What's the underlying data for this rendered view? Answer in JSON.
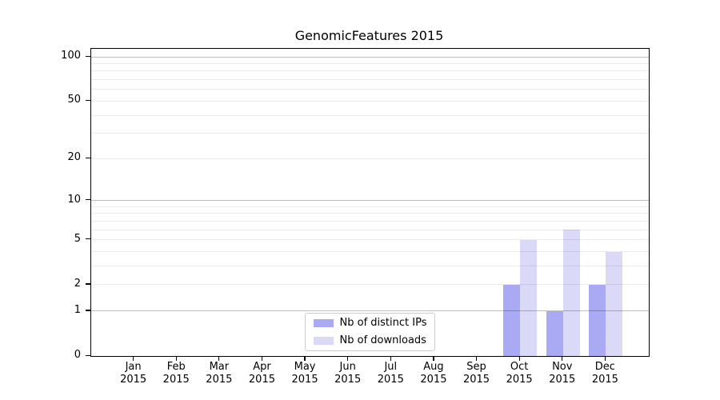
{
  "colors": {
    "bar_distinct_ips": "#aaaaf4",
    "bar_downloads": "#dadaf8",
    "grid_major": "rgba(0,0,0,0.25)",
    "grid_minor": "rgba(0,0,0,0.08)",
    "axis": "#000000",
    "text": "#000000",
    "legend_border": "#cccccc",
    "background": "#ffffff"
  },
  "chart_data": {
    "type": "bar",
    "title": "GenomicFeatures 2015",
    "categories": [
      "Jan 2015",
      "Feb 2015",
      "Mar 2015",
      "Apr 2015",
      "May 2015",
      "Jun 2015",
      "Jul 2015",
      "Aug 2015",
      "Sep 2015",
      "Oct 2015",
      "Nov 2015",
      "Dec 2015"
    ],
    "series": [
      {
        "name": "Nb of distinct IPs",
        "color": "#aaaaf4",
        "values": [
          0,
          0,
          0,
          0,
          0,
          0,
          0,
          0,
          0,
          2,
          1,
          2
        ]
      },
      {
        "name": "Nb of downloads",
        "color": "#dadaf8",
        "values": [
          0,
          0,
          0,
          0,
          0,
          0,
          0,
          0,
          0,
          5,
          6,
          4
        ]
      }
    ],
    "xlabel": "",
    "ylabel": "",
    "y_scale": "log1p",
    "y_ticks": [
      0,
      1,
      2,
      5,
      10,
      20,
      50,
      100
    ],
    "y_gridlines_major": [
      1,
      10,
      100
    ],
    "y_gridlines_minor": [
      2,
      3,
      4,
      5,
      6,
      7,
      8,
      9,
      20,
      30,
      40,
      50,
      60,
      70,
      80,
      90
    ],
    "ylim": [
      0,
      113
    ],
    "grid": true,
    "legend_position": "lower center"
  }
}
